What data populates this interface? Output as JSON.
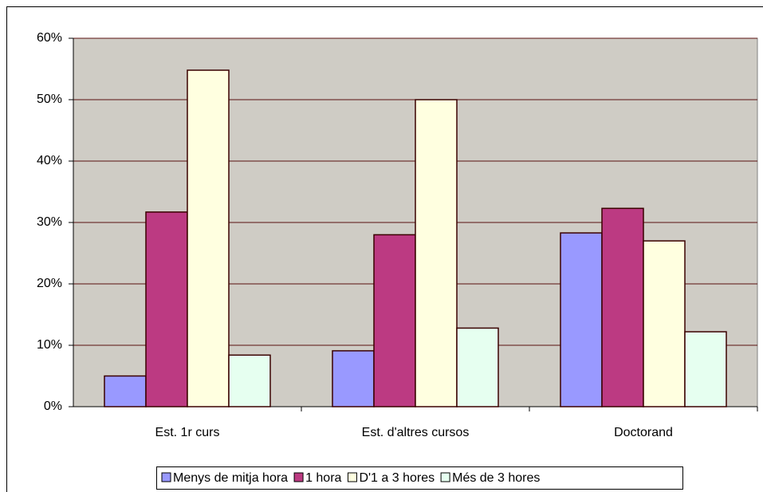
{
  "chart_data": {
    "type": "bar",
    "categories": [
      "Est. 1r curs",
      "Est. d'altres cursos",
      "Doctorand"
    ],
    "series": [
      {
        "name": "Menys de mitja hora",
        "color": "#9999ff",
        "values": [
          5,
          9.1,
          28.3
        ]
      },
      {
        "name": "1 hora",
        "color": "#bc3a82",
        "values": [
          31.7,
          28,
          32.3
        ]
      },
      {
        "name": "D'1 a 3 hores",
        "color": "#ffffe0",
        "values": [
          54.8,
          50,
          27
        ]
      },
      {
        "name": "Més de 3 hores",
        "color": "#e6fff0",
        "values": [
          8.4,
          12.8,
          12.2
        ]
      }
    ],
    "ylim": [
      0,
      60
    ],
    "yticks": [
      {
        "value": 0,
        "label": "0%"
      },
      {
        "value": 10,
        "label": "10%"
      },
      {
        "value": 20,
        "label": "20%"
      },
      {
        "value": 30,
        "label": "30%"
      },
      {
        "value": 40,
        "label": "40%"
      },
      {
        "value": 50,
        "label": "50%"
      },
      {
        "value": 60,
        "label": "60%"
      }
    ],
    "grid": true,
    "legend": "bottom"
  }
}
